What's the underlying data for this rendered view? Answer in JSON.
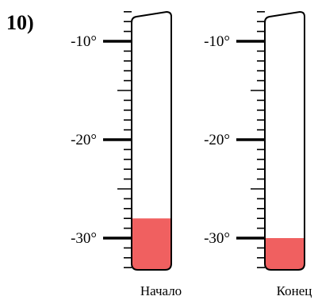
{
  "problem_number": "10)",
  "scale": {
    "tick_labels": [
      "-10°",
      "-20°",
      "-30°"
    ],
    "labeled_values": [
      -10,
      -20,
      -30
    ],
    "min": -33,
    "max": -7,
    "minor_step": 1
  },
  "thermometers": [
    {
      "caption": "Начало",
      "reading": -28
    },
    {
      "caption": "Конец",
      "reading": -30
    }
  ],
  "colors": {
    "liquid": "#f06060",
    "outline": "#000000",
    "background": "#ffffff"
  }
}
